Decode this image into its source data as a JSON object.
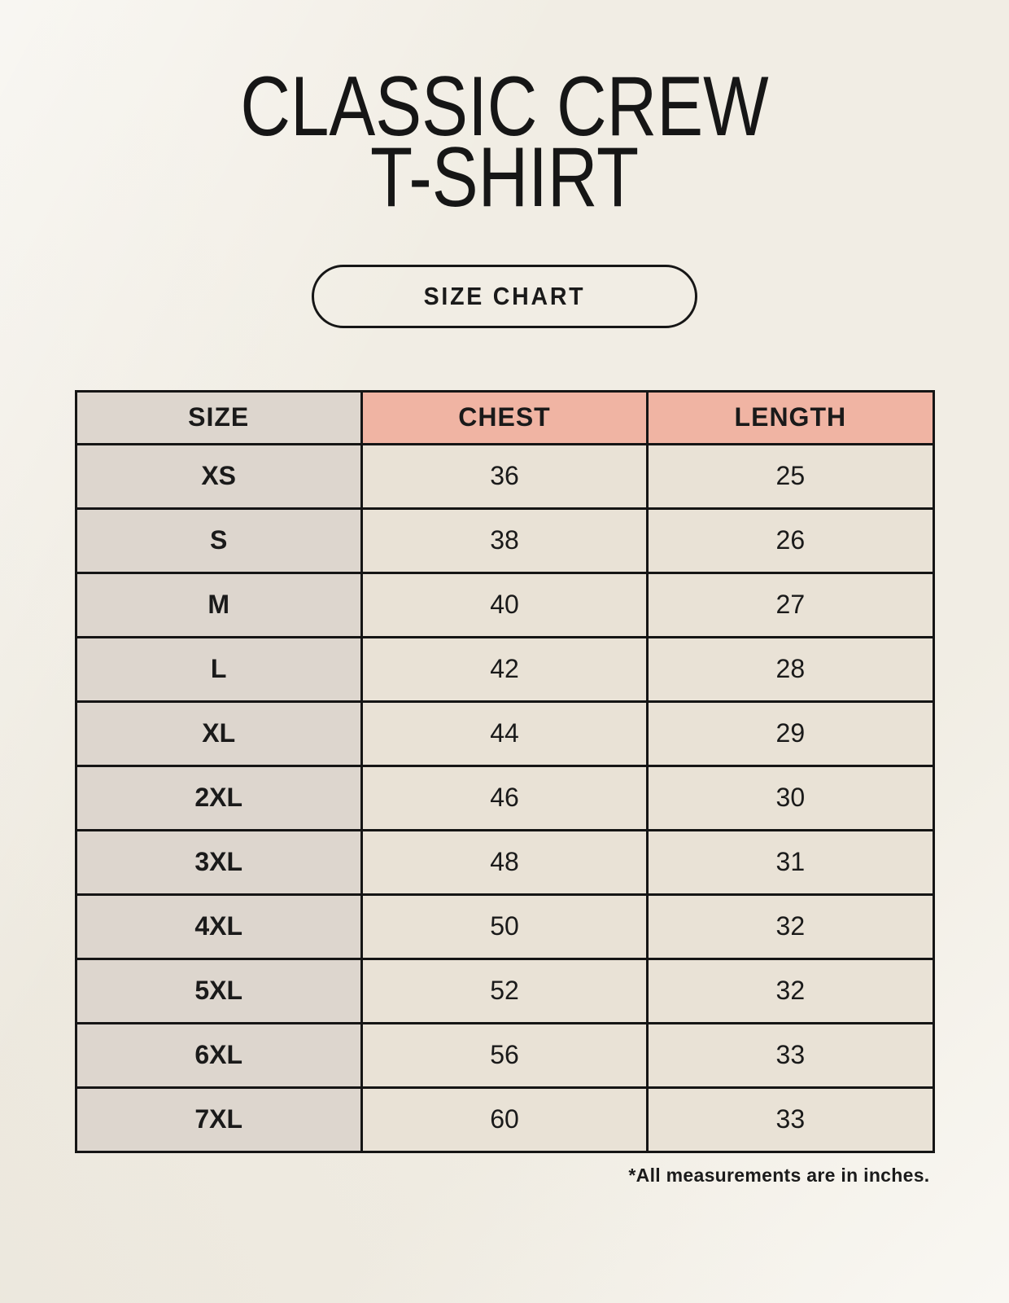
{
  "page": {
    "title_line1": "CLASSIC CREW",
    "title_line2": "T-SHIRT",
    "badge_label": "SIZE CHART",
    "footnote": "*All measurements are in inches."
  },
  "colors": {
    "background": "#f5f2ea",
    "size_column_bg": "#ddd6ce",
    "header_accent_bg": "#f0b4a3",
    "data_cell_bg": "#e9e2d6",
    "border": "#151515",
    "text": "#1a1a1a"
  },
  "table": {
    "headers": [
      "SIZE",
      "CHEST",
      "LENGTH"
    ],
    "rows": [
      {
        "size": "XS",
        "chest": "36",
        "length": "25"
      },
      {
        "size": "S",
        "chest": "38",
        "length": "26"
      },
      {
        "size": "M",
        "chest": "40",
        "length": "27"
      },
      {
        "size": "L",
        "chest": "42",
        "length": "28"
      },
      {
        "size": "XL",
        "chest": "44",
        "length": "29"
      },
      {
        "size": "2XL",
        "chest": "46",
        "length": "30"
      },
      {
        "size": "3XL",
        "chest": "48",
        "length": "31"
      },
      {
        "size": "4XL",
        "chest": "50",
        "length": "32"
      },
      {
        "size": "5XL",
        "chest": "52",
        "length": "32"
      },
      {
        "size": "6XL",
        "chest": "56",
        "length": "33"
      },
      {
        "size": "7XL",
        "chest": "60",
        "length": "33"
      }
    ]
  },
  "chart_data": {
    "type": "table",
    "title": "CLASSIC CREW T-SHIRT",
    "subtitle": "SIZE CHART",
    "columns": [
      "SIZE",
      "CHEST",
      "LENGTH"
    ],
    "rows": [
      [
        "XS",
        36,
        25
      ],
      [
        "S",
        38,
        26
      ],
      [
        "M",
        40,
        27
      ],
      [
        "L",
        42,
        28
      ],
      [
        "XL",
        44,
        29
      ],
      [
        "2XL",
        46,
        30
      ],
      [
        "3XL",
        48,
        31
      ],
      [
        "4XL",
        50,
        32
      ],
      [
        "5XL",
        52,
        32
      ],
      [
        "6XL",
        56,
        33
      ],
      [
        "7XL",
        60,
        33
      ]
    ],
    "note": "*All measurements are in inches.",
    "units": "inches"
  }
}
